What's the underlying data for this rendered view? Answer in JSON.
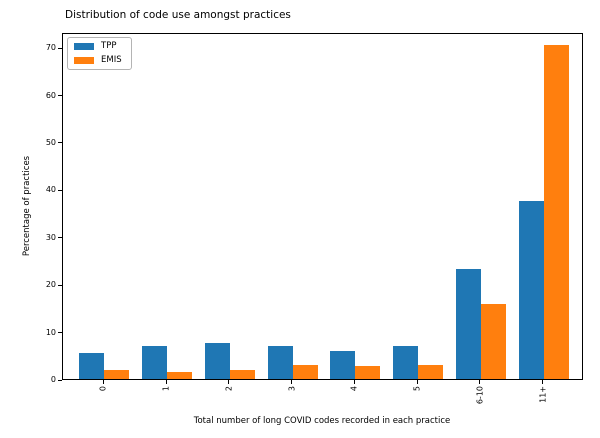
{
  "chart_data": {
    "type": "bar",
    "title": "Distribution of code use amongst practices",
    "xlabel": "Total number of long COVID codes recorded in each practice",
    "ylabel": "Percentage of practices",
    "categories": [
      "0",
      "1",
      "2",
      "3",
      "4",
      "5",
      "6-10",
      "11+"
    ],
    "series": [
      {
        "name": "TPP",
        "color": "#1f77b4",
        "values": [
          5.4,
          6.9,
          7.5,
          6.9,
          6.0,
          7.0,
          23.3,
          37.6
        ]
      },
      {
        "name": "EMIS",
        "color": "#ff7f0e",
        "values": [
          2.0,
          1.4,
          2.0,
          2.9,
          2.8,
          3.0,
          15.9,
          70.5
        ]
      }
    ],
    "ylim": [
      0,
      73.2
    ],
    "yticks": [
      0,
      10,
      20,
      30,
      40,
      50,
      60,
      70
    ],
    "legend_position": "upper left",
    "grid": false,
    "x_tick_rotation_deg": 90
  }
}
